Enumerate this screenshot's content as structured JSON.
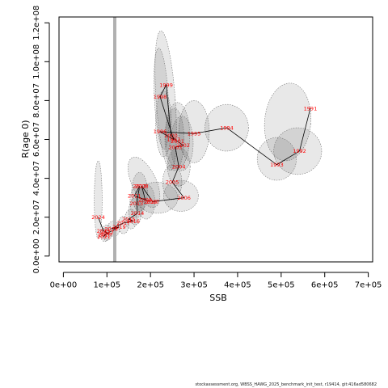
{
  "chart_data": {
    "type": "scatter",
    "xlabel": "SSB",
    "ylabel": "R(age 0)",
    "xlim": [
      -10000,
      710000
    ],
    "ylim": [
      -3000000,
      123000000
    ],
    "x_ticks": [
      0,
      100000,
      200000,
      300000,
      400000,
      500000,
      600000,
      700000
    ],
    "x_tick_labels": [
      "0e+00",
      "1e+05",
      "2e+05",
      "3e+05",
      "4e+05",
      "5e+05",
      "6e+05",
      "7e+05"
    ],
    "y_ticks": [
      0,
      20000000,
      40000000,
      60000000,
      80000000,
      100000000,
      120000000
    ],
    "y_tick_labels": [
      "0.0e+00",
      "2.0e+07",
      "4.0e+07",
      "6.0e+07",
      "8.0e+07",
      "1.0e+08",
      "1.2e+08"
    ],
    "reference_line_x": 118000,
    "points": [
      {
        "label": "1991",
        "x": 567000,
        "y": 76000000
      },
      {
        "label": "1992",
        "x": 542000,
        "y": 54000000
      },
      {
        "label": "1993",
        "x": 490000,
        "y": 47000000
      },
      {
        "label": "1994",
        "x": 375000,
        "y": 66000000
      },
      {
        "label": "1995",
        "x": 300000,
        "y": 63000000
      },
      {
        "label": "1996",
        "x": 222000,
        "y": 64000000
      },
      {
        "label": "1997",
        "x": 253000,
        "y": 60000000
      },
      {
        "label": "1998",
        "x": 222000,
        "y": 82000000
      },
      {
        "label": "1999",
        "x": 236000,
        "y": 88000000
      },
      {
        "label": "2000",
        "x": 247000,
        "y": 62000000
      },
      {
        "label": "2001",
        "x": 262000,
        "y": 59000000
      },
      {
        "label": "2002",
        "x": 275000,
        "y": 57000000
      },
      {
        "label": "2003",
        "x": 257000,
        "y": 56000000
      },
      {
        "label": "2004",
        "x": 265000,
        "y": 46000000
      },
      {
        "label": "2005",
        "x": 250000,
        "y": 38000000
      },
      {
        "label": "2006",
        "x": 277000,
        "y": 30000000
      },
      {
        "label": "2007",
        "x": 205000,
        "y": 28000000
      },
      {
        "label": "2008",
        "x": 180000,
        "y": 36000000
      },
      {
        "label": "2009",
        "x": 188000,
        "y": 29000000
      },
      {
        "label": "2010",
        "x": 200000,
        "y": 28000000
      },
      {
        "label": "2011",
        "x": 163000,
        "y": 31000000
      },
      {
        "label": "2012",
        "x": 175000,
        "y": 36000000
      },
      {
        "label": "2013",
        "x": 168000,
        "y": 27000000
      },
      {
        "label": "2014",
        "x": 170000,
        "y": 22000000
      },
      {
        "label": "2015",
        "x": 150000,
        "y": 19000000
      },
      {
        "label": "2016",
        "x": 160000,
        "y": 18000000
      },
      {
        "label": "2017",
        "x": 138000,
        "y": 17000000
      },
      {
        "label": "2018",
        "x": 110000,
        "y": 14000000
      },
      {
        "label": "2019",
        "x": 128000,
        "y": 15000000
      },
      {
        "label": "2020",
        "x": 95000,
        "y": 11000000
      },
      {
        "label": "2021",
        "x": 93000,
        "y": 10000000
      },
      {
        "label": "2022",
        "x": 100000,
        "y": 12000000
      },
      {
        "label": "2023",
        "x": 92000,
        "y": 13000000
      },
      {
        "label": "2024",
        "x": 80000,
        "y": 20000000
      }
    ],
    "ellipses": [
      {
        "x": 515000,
        "y": 69000000,
        "sx": 53000,
        "sy": 20000000,
        "rot": -5
      },
      {
        "x": 538000,
        "y": 54000000,
        "sx": 55000,
        "sy": 12000000,
        "rot": 0
      },
      {
        "x": 490000,
        "y": 50000000,
        "sx": 45000,
        "sy": 11000000,
        "rot": 0
      },
      {
        "x": 375000,
        "y": 66000000,
        "sx": 50000,
        "sy": 12000000,
        "rot": 0
      },
      {
        "x": 300000,
        "y": 64000000,
        "sx": 35000,
        "sy": 16000000,
        "rot": 0
      },
      {
        "x": 235000,
        "y": 80000000,
        "sx": 22000,
        "sy": 36000000,
        "rot": 4
      },
      {
        "x": 225000,
        "y": 81000000,
        "sx": 16000,
        "sy": 26000000,
        "rot": 3
      },
      {
        "x": 230000,
        "y": 68000000,
        "sx": 18000,
        "sy": 17000000,
        "rot": 0
      },
      {
        "x": 262000,
        "y": 62000000,
        "sx": 28000,
        "sy": 17000000,
        "rot": 0
      },
      {
        "x": 255000,
        "y": 60000000,
        "sx": 22000,
        "sy": 16000000,
        "rot": 0
      },
      {
        "x": 272000,
        "y": 58000000,
        "sx": 26000,
        "sy": 14000000,
        "rot": 0
      },
      {
        "x": 265000,
        "y": 46000000,
        "sx": 26000,
        "sy": 10000000,
        "rot": 0
      },
      {
        "x": 250000,
        "y": 38000000,
        "sx": 22000,
        "sy": 9000000,
        "rot": 0
      },
      {
        "x": 270000,
        "y": 31000000,
        "sx": 40000,
        "sy": 8000000,
        "rot": 0
      },
      {
        "x": 215000,
        "y": 30000000,
        "sx": 48000,
        "sy": 8000000,
        "rot": 0
      },
      {
        "x": 185000,
        "y": 38000000,
        "sx": 28000,
        "sy": 14000000,
        "rot": 25
      },
      {
        "x": 175000,
        "y": 33000000,
        "sx": 18000,
        "sy": 10000000,
        "rot": 0
      },
      {
        "x": 170000,
        "y": 28000000,
        "sx": 17000,
        "sy": 8000000,
        "rot": 0
      },
      {
        "x": 190000,
        "y": 28000000,
        "sx": 20000,
        "sy": 9000000,
        "rot": 0
      },
      {
        "x": 165000,
        "y": 23000000,
        "sx": 15000,
        "sy": 7000000,
        "rot": 0
      },
      {
        "x": 155000,
        "y": 19000000,
        "sx": 14000,
        "sy": 5000000,
        "rot": 0
      },
      {
        "x": 138000,
        "y": 16000000,
        "sx": 12000,
        "sy": 4500000,
        "rot": 0
      },
      {
        "x": 115000,
        "y": 14000000,
        "sx": 14000,
        "sy": 4000000,
        "rot": 0
      },
      {
        "x": 100000,
        "y": 12000000,
        "sx": 12000,
        "sy": 4000000,
        "rot": 0
      },
      {
        "x": 95000,
        "y": 11000000,
        "sx": 10000,
        "sy": 3500000,
        "rot": 0
      },
      {
        "x": 80000,
        "y": 29000000,
        "sx": 9000,
        "sy": 20000000,
        "rot": 0
      }
    ]
  },
  "footer_text": "stockassessment.org, WBSS_HAWG_2025_benchmark_init_test, r19414, git:416ad580682"
}
